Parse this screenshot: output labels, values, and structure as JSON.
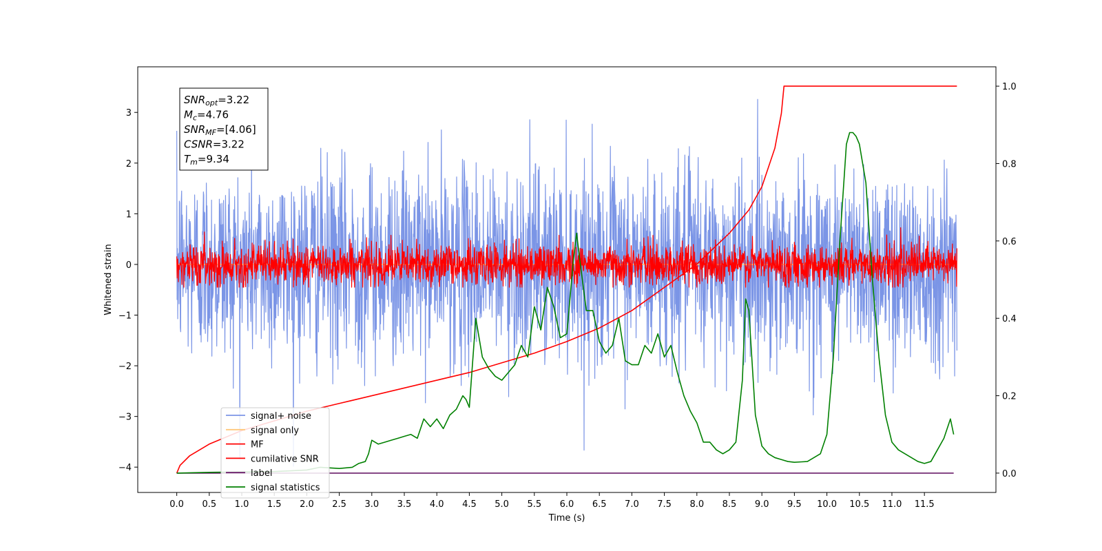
{
  "chart_data": {
    "type": "line",
    "xlabel": "Time (s)",
    "ylabel": "Whitened strain",
    "xlim": [
      -0.6,
      12.6
    ],
    "ylim": [
      -4.5,
      3.9
    ],
    "y2lim": [
      -0.05,
      1.05
    ],
    "x_ticks": [
      0.0,
      0.5,
      1.0,
      1.5,
      2.0,
      2.5,
      3.0,
      3.5,
      4.0,
      4.5,
      5.0,
      5.5,
      6.0,
      6.5,
      7.0,
      7.5,
      8.0,
      8.5,
      9.0,
      9.5,
      10.0,
      10.5,
      11.0,
      11.5
    ],
    "x_tick_labels": [
      "0.0",
      "0.5",
      "1.0",
      "1.5",
      "2.0",
      "2.5",
      "3.0",
      "3.5",
      "4.0",
      "4.5",
      "5.0",
      "5.5",
      "6.0",
      "6.5",
      "7.0",
      "7.5",
      "8.0",
      "8.5",
      "9.0",
      "9.5",
      "10.0",
      "10.5",
      "11.0",
      "11.5"
    ],
    "y_ticks": [
      3,
      2,
      1,
      0,
      -1,
      -2,
      -3,
      -4
    ],
    "y_tick_labels": [
      "3",
      "2",
      "1",
      "0",
      "−1",
      "−2",
      "−3",
      "−4"
    ],
    "y2_ticks": [
      1.0,
      0.8,
      0.6,
      0.4,
      0.2,
      0.0
    ],
    "y2_tick_labels": [
      "1.0",
      "0.8",
      "0.6",
      "0.4",
      "0.2",
      "0.0"
    ],
    "grid": false,
    "legend_placement": "lower-left",
    "annotation": {
      "lines": [
        {
          "name": "SNR",
          "sub": "opt",
          "value": "=3.22"
        },
        {
          "name": "M",
          "sub": "c",
          "value": "=4.76"
        },
        {
          "name": "SNR",
          "sub": "MF",
          "value": "=[4.06]"
        },
        {
          "name": "CSNR",
          "sub": "",
          "value": "=3.22"
        },
        {
          "name": "T",
          "sub": "m",
          "value": "=9.34"
        }
      ]
    },
    "series": [
      {
        "name": "signal+ noise",
        "color": "#7b95e6",
        "axis": "left",
        "kind": "noise",
        "x_range": [
          0.0,
          12.0
        ],
        "center": 0.0,
        "std": 0.95,
        "approx_min": -4.1,
        "approx_max": 3.55
      },
      {
        "name": "signal only",
        "color": "#ffc77a",
        "axis": "left",
        "kind": "line",
        "x": [
          0.0,
          12.0
        ],
        "y": [
          0.0,
          0.0
        ]
      },
      {
        "name": "MF",
        "color": "#ff0000",
        "axis": "left",
        "kind": "noise",
        "x_range": [
          0.0,
          12.0
        ],
        "center": 0.0,
        "std": 0.2,
        "approx_min": -0.45,
        "approx_max": 0.9
      },
      {
        "name": "cumilative SNR",
        "color": "#ff0000",
        "axis": "right",
        "kind": "line",
        "x": [
          0.0,
          0.05,
          0.2,
          0.5,
          1.0,
          1.5,
          2.0,
          2.5,
          3.0,
          3.5,
          4.0,
          4.5,
          5.0,
          5.5,
          6.0,
          6.5,
          7.0,
          7.5,
          8.0,
          8.5,
          8.8,
          9.0,
          9.2,
          9.3,
          9.34,
          12.0
        ],
        "y": [
          0.0,
          0.02,
          0.045,
          0.075,
          0.11,
          0.135,
          0.16,
          0.18,
          0.2,
          0.22,
          0.24,
          0.26,
          0.285,
          0.31,
          0.34,
          0.375,
          0.42,
          0.48,
          0.54,
          0.62,
          0.68,
          0.74,
          0.84,
          0.93,
          1.0,
          1.0
        ]
      },
      {
        "name": "label",
        "color": "#6a1b6a",
        "axis": "right",
        "kind": "line",
        "x": [
          0.0,
          11.95
        ],
        "y": [
          0.0,
          0.0
        ]
      },
      {
        "name": "signal statistics",
        "color": "#008000",
        "axis": "right",
        "kind": "line",
        "x": [
          0.0,
          0.5,
          1.0,
          1.5,
          2.0,
          2.2,
          2.5,
          2.7,
          2.8,
          2.9,
          2.95,
          3.0,
          3.1,
          3.2,
          3.3,
          3.4,
          3.5,
          3.6,
          3.7,
          3.8,
          3.9,
          4.0,
          4.1,
          4.2,
          4.3,
          4.4,
          4.45,
          4.5,
          4.6,
          4.7,
          4.8,
          4.9,
          5.0,
          5.1,
          5.2,
          5.3,
          5.4,
          5.5,
          5.6,
          5.7,
          5.8,
          5.9,
          6.0,
          6.1,
          6.15,
          6.2,
          6.3,
          6.4,
          6.5,
          6.6,
          6.7,
          6.8,
          6.9,
          7.0,
          7.1,
          7.2,
          7.3,
          7.4,
          7.5,
          7.6,
          7.7,
          7.8,
          7.9,
          8.0,
          8.1,
          8.2,
          8.3,
          8.4,
          8.5,
          8.6,
          8.7,
          8.75,
          8.8,
          8.9,
          9.0,
          9.1,
          9.2,
          9.3,
          9.4,
          9.5,
          9.6,
          9.7,
          9.8,
          9.9,
          10.0,
          10.1,
          10.2,
          10.3,
          10.35,
          10.4,
          10.45,
          10.5,
          10.6,
          10.7,
          10.8,
          10.9,
          11.0,
          11.1,
          11.2,
          11.3,
          11.4,
          11.5,
          11.6,
          11.7,
          11.8,
          11.9,
          11.95
        ],
        "y": [
          0.0,
          0.002,
          0.003,
          0.004,
          0.008,
          0.015,
          0.012,
          0.015,
          0.025,
          0.03,
          0.05,
          0.085,
          0.075,
          0.08,
          0.085,
          0.09,
          0.095,
          0.1,
          0.09,
          0.14,
          0.12,
          0.14,
          0.115,
          0.15,
          0.165,
          0.2,
          0.19,
          0.17,
          0.4,
          0.3,
          0.27,
          0.25,
          0.24,
          0.26,
          0.28,
          0.33,
          0.3,
          0.43,
          0.37,
          0.48,
          0.43,
          0.35,
          0.36,
          0.55,
          0.62,
          0.55,
          0.42,
          0.42,
          0.34,
          0.31,
          0.33,
          0.4,
          0.29,
          0.28,
          0.28,
          0.33,
          0.31,
          0.36,
          0.3,
          0.33,
          0.26,
          0.2,
          0.16,
          0.13,
          0.08,
          0.08,
          0.06,
          0.05,
          0.06,
          0.08,
          0.24,
          0.45,
          0.42,
          0.15,
          0.07,
          0.05,
          0.04,
          0.035,
          0.03,
          0.028,
          0.029,
          0.03,
          0.04,
          0.05,
          0.1,
          0.3,
          0.6,
          0.85,
          0.88,
          0.88,
          0.87,
          0.85,
          0.75,
          0.5,
          0.3,
          0.15,
          0.08,
          0.06,
          0.05,
          0.04,
          0.03,
          0.025,
          0.03,
          0.06,
          0.09,
          0.14,
          0.1
        ]
      }
    ]
  }
}
